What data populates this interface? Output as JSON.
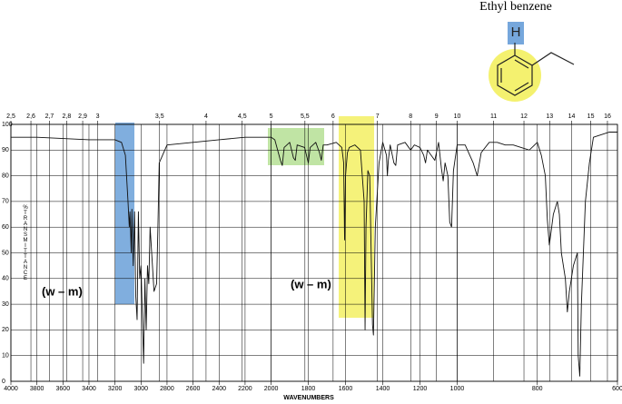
{
  "chart_data": {
    "type": "line",
    "title": "Ethyl benzene",
    "molecule_atom": "H",
    "annotations": [
      "(w – m)",
      "(w – m)"
    ],
    "xlabel": "WAVENUMBERS",
    "ylabel": "%TRANSMITTANCE",
    "xlim": [
      4000,
      600
    ],
    "x_scale_breaks": [
      2000,
      1000
    ],
    "x_scale_factors": [
      1,
      1.43,
      3.08
    ],
    "xticks": [
      4000,
      3800,
      3600,
      3400,
      3200,
      3000,
      2800,
      2600,
      2400,
      2200,
      2000,
      1800,
      1600,
      1400,
      1200,
      1000,
      800,
      600
    ],
    "x2ticks": [
      {
        "value": 2.5,
        "label": "2,5"
      },
      {
        "value": 2.6,
        "label": "2,6"
      },
      {
        "value": 2.7,
        "label": "2,7"
      },
      {
        "value": 2.8,
        "label": "2,8"
      },
      {
        "value": 2.9,
        "label": "2,9"
      },
      3,
      {
        "value": 3.5,
        "label": "3,5"
      },
      4,
      {
        "value": 4.5,
        "label": "4,5"
      },
      5,
      {
        "value": 5.5,
        "label": "5,5"
      },
      6,
      7,
      8,
      9,
      10,
      11,
      12,
      13,
      14,
      15,
      16
    ],
    "ylim": [
      0,
      100
    ],
    "yticks": [
      0,
      10,
      20,
      30,
      40,
      50,
      60,
      70,
      80,
      90,
      100
    ],
    "grid": true,
    "color": "#111111",
    "x": [
      4000,
      3800,
      3600,
      3400,
      3200,
      3150,
      3120,
      3100,
      3090,
      3085,
      3075,
      3070,
      3060,
      3050,
      3040,
      3030,
      3020,
      3010,
      3000,
      2980,
      2970,
      2960,
      2950,
      2940,
      2930,
      2900,
      2880,
      2870,
      2860,
      2800,
      2600,
      2400,
      2200,
      2100,
      2000,
      1980,
      1950,
      1940,
      1930,
      1900,
      1880,
      1870,
      1860,
      1820,
      1800,
      1790,
      1760,
      1740,
      1730,
      1720,
      1700,
      1650,
      1620,
      1610,
      1605,
      1600,
      1590,
      1580,
      1550,
      1520,
      1500,
      1495,
      1490,
      1480,
      1470,
      1455,
      1450,
      1440,
      1420,
      1400,
      1380,
      1375,
      1370,
      1360,
      1340,
      1330,
      1320,
      1280,
      1250,
      1230,
      1200,
      1180,
      1170,
      1160,
      1150,
      1120,
      1100,
      1085,
      1075,
      1065,
      1050,
      1040,
      1030,
      1020,
      1000,
      980,
      960,
      950,
      940,
      920,
      900,
      880,
      860,
      820,
      800,
      790,
      780,
      775,
      770,
      760,
      750,
      745,
      740,
      730,
      725,
      720,
      715,
      710,
      700,
      698,
      694,
      690,
      680,
      670,
      660,
      640,
      620,
      600
    ],
    "values": [
      95,
      95,
      94.5,
      94,
      94,
      93,
      88,
      70,
      60,
      66,
      50,
      67,
      45,
      66,
      33,
      24,
      66,
      40,
      45,
      7,
      40,
      20,
      45,
      38,
      60,
      35,
      38,
      60,
      85,
      92,
      93,
      94,
      95,
      95,
      95,
      94,
      86,
      84,
      91,
      93,
      87,
      86,
      92,
      91,
      85,
      91,
      93,
      89,
      86,
      92,
      92,
      93,
      91,
      85,
      55,
      80,
      89,
      91,
      92,
      90,
      70,
      20,
      60,
      82,
      80,
      22,
      18,
      60,
      85,
      93,
      88,
      80,
      86,
      92,
      85,
      84,
      92,
      93,
      90,
      92,
      91,
      88,
      85,
      90,
      89,
      86,
      93,
      83,
      78,
      85,
      80,
      62,
      60,
      82,
      92,
      92,
      85,
      80,
      89,
      93,
      93,
      92,
      92,
      90,
      93,
      88,
      80,
      63,
      53,
      65,
      70,
      65,
      50,
      40,
      27,
      35,
      40,
      45,
      50,
      10,
      2,
      30,
      70,
      85,
      95,
      96,
      97,
      97
    ]
  }
}
